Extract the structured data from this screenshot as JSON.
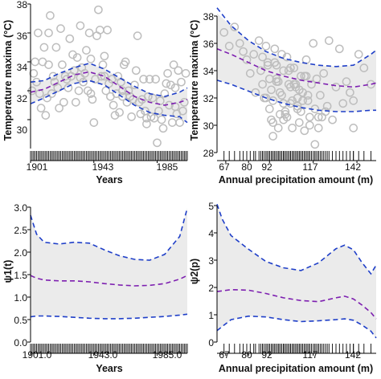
{
  "chart_data": [
    {
      "type": "scatter",
      "panel": "top-left",
      "xlabel": "Years",
      "ylabel": "Temperature maxima (°C)",
      "xlim": [
        1901,
        2005
      ],
      "ylim": [
        28,
        38
      ],
      "x_ticks": [
        1901,
        1943,
        1985
      ],
      "y_ticks": [
        30,
        32,
        34,
        36,
        38
      ],
      "rug": "dense ticks along x axis",
      "band_color": "#ebebeb",
      "point_color": "#bdbdbd",
      "series": [
        {
          "role": "fit",
          "style": "dashed",
          "color": "#7d1fb0",
          "x": [
            1901,
            1910,
            1920,
            1930,
            1940,
            1950,
            1960,
            1970,
            1980,
            1990,
            2000,
            2005
          ],
          "y": [
            31.9,
            32.1,
            32.6,
            33.1,
            33.3,
            33.0,
            32.3,
            31.6,
            31.2,
            31.0,
            31.2,
            31.4
          ]
        },
        {
          "role": "upper",
          "style": "dashed",
          "color": "#1f3fc8",
          "x": [
            1901,
            1910,
            1920,
            1930,
            1940,
            1950,
            1960,
            1970,
            1980,
            1990,
            2000,
            2005
          ],
          "y": [
            32.6,
            32.7,
            33.2,
            33.6,
            33.9,
            33.5,
            32.9,
            32.3,
            31.8,
            31.6,
            31.9,
            32.2
          ]
        },
        {
          "role": "lower",
          "style": "dashed",
          "color": "#1f3fc8",
          "x": [
            1901,
            1910,
            1920,
            1930,
            1940,
            1950,
            1960,
            1970,
            1980,
            1990,
            2000,
            2005
          ],
          "y": [
            31.1,
            31.5,
            32.0,
            32.5,
            32.7,
            32.4,
            31.7,
            31.0,
            30.5,
            30.3,
            30.2,
            29.8
          ]
        },
        {
          "role": "observations",
          "style": "open-circle",
          "x": [
            1902,
            1903,
            1904,
            1905,
            1906,
            1907,
            1908,
            1909,
            1910,
            1911,
            1912,
            1913,
            1914,
            1915,
            1916,
            1917,
            1918,
            1919,
            1920,
            1921,
            1922,
            1923,
            1924,
            1925,
            1926,
            1927,
            1928,
            1929,
            1930,
            1931,
            1932,
            1933,
            1934,
            1935,
            1936,
            1937,
            1938,
            1939,
            1940,
            1941,
            1942,
            1943,
            1944,
            1945,
            1946,
            1947,
            1948,
            1949,
            1950,
            1951,
            1952,
            1953,
            1954,
            1955,
            1956,
            1957,
            1958,
            1959,
            1960,
            1961,
            1962,
            1963,
            1964,
            1965,
            1966,
            1967,
            1968,
            1969,
            1970,
            1971,
            1972,
            1973,
            1974,
            1975,
            1976,
            1977,
            1978,
            1979,
            1980,
            1981,
            1982,
            1983,
            1984,
            1985,
            1986,
            1987,
            1988,
            1989,
            1990,
            1991,
            1992,
            1993,
            1994,
            1995,
            1996,
            1997,
            1998,
            1999,
            2000,
            2001,
            2002,
            2003,
            2004,
            1913,
            1934,
            1941,
            1950,
            1962,
            1978,
            1997
          ],
          "y": [
            32.0,
            33.2,
            34.0,
            32.6,
            36.0,
            31.8,
            30.8,
            34.0,
            35.0,
            30.3,
            31.5,
            36.0,
            37.2,
            31.8,
            33.0,
            32.6,
            35.0,
            32.2,
            30.8,
            36.3,
            33.8,
            31.2,
            33.0,
            32.8,
            32.2,
            35.6,
            33.0,
            34.5,
            33.4,
            31.2,
            34.3,
            32.0,
            36.5,
            33.6,
            32.6,
            33.2,
            34.8,
            32.0,
            36.0,
            34.2,
            31.4,
            29.8,
            32.8,
            35.8,
            37.6,
            36.2,
            33.0,
            33.8,
            34.4,
            32.0,
            36.2,
            32.5,
            31.6,
            32.8,
            31.0,
            30.3,
            31.8,
            33.0,
            30.5,
            32.6,
            32.0,
            33.8,
            34.0,
            31.2,
            32.0,
            31.6,
            30.2,
            31.4,
            32.4,
            33.4,
            35.8,
            31.2,
            30.4,
            31.4,
            32.8,
            30.6,
            29.7,
            31.6,
            32.8,
            30.2,
            31.5,
            30.1,
            32.8,
            28.4,
            30.6,
            31.3,
            30.0,
            29.4,
            31.8,
            32.5,
            33.2,
            31.0,
            32.4,
            29.8,
            33.8,
            32.2,
            30.4,
            33.4,
            29.8,
            32.6,
            30.6,
            31.2,
            33.2,
            33.8,
            32.9,
            31.8,
            33.0,
            31.6,
            30.1,
            30.9
          ]
        }
      ]
    },
    {
      "type": "scatter",
      "panel": "top-right",
      "xlabel": "Annual precipitation amount (m)",
      "ylabel": "Temperature maxima (°C)",
      "xlim": [
        62,
        153
      ],
      "ylim": [
        28,
        38
      ],
      "x_ticks": [
        67,
        80,
        92,
        117,
        142
      ],
      "y_ticks": [
        28,
        30,
        32,
        34,
        36,
        38
      ],
      "rug": "ticks along x axis",
      "band_color": "#ebebeb",
      "point_color": "#bdbdbd",
      "series": [
        {
          "role": "fit",
          "style": "dashed",
          "color": "#7d1fb0",
          "x": [
            62,
            70,
            80,
            90,
            100,
            110,
            120,
            130,
            140,
            150,
            153
          ],
          "y": [
            35.6,
            35.2,
            34.6,
            34.0,
            33.6,
            33.3,
            33.1,
            32.9,
            32.8,
            33.0,
            33.1
          ]
        },
        {
          "role": "upper",
          "style": "dashed",
          "color": "#1f3fc8",
          "x": [
            62,
            70,
            80,
            90,
            100,
            110,
            120,
            130,
            140,
            150,
            153
          ],
          "y": [
            38.6,
            37.3,
            36.2,
            35.4,
            34.9,
            34.6,
            34.4,
            34.3,
            34.4,
            35.2,
            35.5
          ]
        },
        {
          "role": "lower",
          "style": "dashed",
          "color": "#1f3fc8",
          "x": [
            62,
            70,
            80,
            90,
            100,
            110,
            120,
            130,
            140,
            150,
            153
          ],
          "y": [
            33.3,
            33.0,
            32.5,
            32.0,
            31.6,
            31.3,
            31.1,
            31.0,
            31.0,
            31.1,
            31.1
          ]
        },
        {
          "role": "observations",
          "style": "open-circle",
          "x": [
            66,
            69,
            72,
            75,
            77,
            79,
            81,
            83,
            84,
            86,
            87,
            88,
            89,
            90,
            91,
            92,
            93,
            94,
            95,
            96,
            97,
            98,
            99,
            100,
            101,
            102,
            103,
            104,
            105,
            106,
            107,
            108,
            109,
            110,
            111,
            112,
            113,
            114,
            115,
            116,
            117,
            118,
            119,
            120,
            121,
            122,
            123,
            124,
            126,
            128,
            130,
            132,
            134,
            136,
            138,
            140,
            143,
            146,
            150,
            90,
            92,
            94,
            96,
            98,
            100,
            102,
            104,
            106,
            108,
            110,
            112,
            114,
            93,
            97,
            101,
            105,
            109,
            113,
            95,
            99,
            103,
            107,
            111,
            115,
            91,
            96,
            100,
            104,
            108,
            88,
            94,
            120,
            125,
            140,
            118
          ],
          "y": [
            36.8,
            35.8,
            37.2,
            36.0,
            35.4,
            34.8,
            33.8,
            35.2,
            32.4,
            36.2,
            34.0,
            33.0,
            32.0,
            35.8,
            34.6,
            33.4,
            32.6,
            31.8,
            35.6,
            34.4,
            33.2,
            30.8,
            32.2,
            34.0,
            31.0,
            35.0,
            33.0,
            31.6,
            29.8,
            34.2,
            32.8,
            31.4,
            30.2,
            33.6,
            32.4,
            29.6,
            34.8,
            31.8,
            30.6,
            33.0,
            36.0,
            31.2,
            33.4,
            29.8,
            32.2,
            30.6,
            33.8,
            31.0,
            36.2,
            30.4,
            32.8,
            35.6,
            31.6,
            33.2,
            32.4,
            31.8,
            35.2,
            34.2,
            33.0,
            32.0,
            31.2,
            30.2,
            33.2,
            32.4,
            31.6,
            30.6,
            34.2,
            33.0,
            32.0,
            31.0,
            33.6,
            32.2,
            30.4,
            29.8,
            30.8,
            31.8,
            32.6,
            33.6,
            34.6,
            35.2,
            34.0,
            33.0,
            31.8,
            30.0,
            34.4,
            33.4,
            30.4,
            32.8,
            31.2,
            35.0,
            29.2,
            30.6,
            31.4,
            29.8,
            28.6
          ]
        }
      ]
    },
    {
      "type": "line",
      "panel": "bottom-left",
      "xlabel": "Years",
      "ylabel": "ψ1(t)",
      "xlim": [
        1901,
        2005
      ],
      "ylim": [
        0,
        3
      ],
      "x_ticks": [
        1901,
        1943,
        1985
      ],
      "y_ticks": [
        0.0,
        0.5,
        1.0,
        1.5,
        2.0,
        2.5,
        3.0
      ],
      "rug": "dense ticks along x axis",
      "band_color": "#ebebeb",
      "series": [
        {
          "role": "fit",
          "style": "dashed",
          "color": "#7d1fb0",
          "x": [
            1901,
            1905,
            1910,
            1920,
            1930,
            1940,
            1950,
            1960,
            1970,
            1980,
            1990,
            2000,
            2005
          ],
          "y": [
            1.48,
            1.42,
            1.38,
            1.36,
            1.36,
            1.34,
            1.3,
            1.27,
            1.25,
            1.26,
            1.3,
            1.4,
            1.48
          ]
        },
        {
          "role": "upper",
          "style": "dashed",
          "color": "#1f3fc8",
          "x": [
            1901,
            1905,
            1910,
            1920,
            1930,
            1940,
            1950,
            1960,
            1970,
            1980,
            1990,
            2000,
            2005
          ],
          "y": [
            2.82,
            2.4,
            2.22,
            2.18,
            2.22,
            2.2,
            2.05,
            1.92,
            1.84,
            1.82,
            1.95,
            2.35,
            2.98
          ]
        },
        {
          "role": "lower",
          "style": "dashed",
          "color": "#1f3fc8",
          "x": [
            1901,
            1905,
            1910,
            1920,
            1930,
            1940,
            1950,
            1960,
            1970,
            1980,
            1990,
            2000,
            2005
          ],
          "y": [
            0.56,
            0.58,
            0.58,
            0.57,
            0.55,
            0.53,
            0.52,
            0.52,
            0.53,
            0.55,
            0.57,
            0.6,
            0.62
          ]
        }
      ]
    },
    {
      "type": "line",
      "panel": "bottom-right",
      "xlabel": "Annual precipitation amount (m)",
      "ylabel": "ψ2(p)",
      "xlim": [
        62,
        153
      ],
      "ylim": [
        0,
        5
      ],
      "x_ticks": [
        67,
        80,
        92,
        117,
        142
      ],
      "y_ticks": [
        0,
        1,
        2,
        3,
        4,
        5
      ],
      "rug": "ticks along x axis",
      "band_color": "#ebebeb",
      "series": [
        {
          "role": "fit",
          "style": "dashed",
          "color": "#7d1fb0",
          "x": [
            62,
            70,
            80,
            90,
            100,
            110,
            120,
            130,
            135,
            140,
            145,
            150,
            153
          ],
          "y": [
            1.85,
            1.92,
            1.9,
            1.78,
            1.62,
            1.52,
            1.48,
            1.62,
            1.68,
            1.58,
            1.35,
            1.08,
            0.85
          ]
        },
        {
          "role": "upper",
          "style": "dashed",
          "color": "#1f3fc8",
          "x": [
            62,
            65,
            70,
            80,
            90,
            100,
            110,
            120,
            130,
            135,
            140,
            145,
            150,
            153
          ],
          "y": [
            5.05,
            4.5,
            3.9,
            3.4,
            2.95,
            2.72,
            2.62,
            2.9,
            3.42,
            3.55,
            3.38,
            2.9,
            2.5,
            2.82
          ]
        },
        {
          "role": "lower",
          "style": "dashed",
          "color": "#1f3fc8",
          "x": [
            62,
            70,
            80,
            90,
            100,
            110,
            120,
            130,
            135,
            140,
            145,
            150,
            153
          ],
          "y": [
            0.42,
            0.82,
            0.95,
            0.92,
            0.82,
            0.75,
            0.78,
            0.82,
            0.85,
            0.8,
            0.62,
            0.4,
            0.15
          ]
        }
      ]
    }
  ]
}
